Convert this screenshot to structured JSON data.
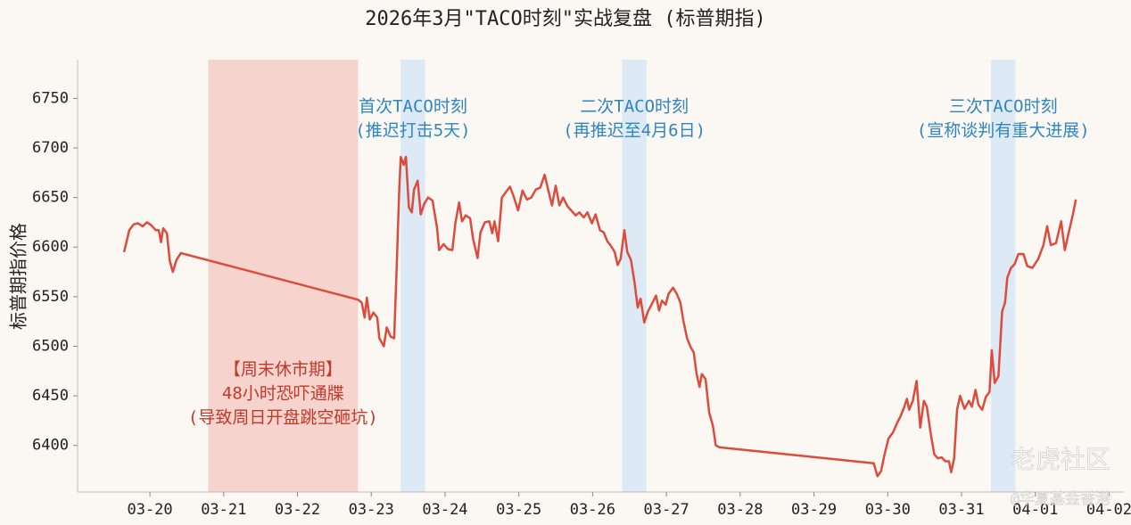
{
  "chart_data": {
    "type": "line",
    "title": "2026年3月\"TACO时刻\"实战复盘 (标普期指)",
    "y_label": "标普期指价格",
    "xlim": [
      19.02,
      33.2
    ],
    "ylim": [
      6353,
      6789
    ],
    "xticks": [
      {
        "value": 20,
        "label": "03-20"
      },
      {
        "value": 21,
        "label": "03-21"
      },
      {
        "value": 22,
        "label": "03-22"
      },
      {
        "value": 23,
        "label": "03-23"
      },
      {
        "value": 24,
        "label": "03-24"
      },
      {
        "value": 25,
        "label": "03-25"
      },
      {
        "value": 26,
        "label": "03-26"
      },
      {
        "value": 27,
        "label": "03-27"
      },
      {
        "value": 28,
        "label": "03-28"
      },
      {
        "value": 29,
        "label": "03-29"
      },
      {
        "value": 30,
        "label": "03-30"
      },
      {
        "value": 31,
        "label": "03-31"
      },
      {
        "value": 32,
        "label": "04-01"
      },
      {
        "value": 33,
        "label": "04-02"
      }
    ],
    "yticks": [
      6400,
      6450,
      6500,
      6550,
      6600,
      6650,
      6700,
      6750
    ],
    "grid": false,
    "spans": [
      {
        "x0": 20.79,
        "x1": 22.82,
        "color": "#f6d3cd",
        "label_color": "#c0392b",
        "label": [
          "【周末休市期】",
          "48小时恐吓通牒",
          "(导致周日开盘跳空砸坑)"
        ]
      },
      {
        "x0": 23.4,
        "x1": 23.73,
        "color": "#dde9f5",
        "label_color": "#2e86c1",
        "label": [
          "首次TACO时刻",
          "(推迟打击5天)"
        ]
      },
      {
        "x0": 26.4,
        "x1": 26.73,
        "color": "#dde9f5",
        "label_color": "#2e86c1",
        "label": [
          "二次TACO时刻",
          "(再推迟至4月6日)"
        ]
      },
      {
        "x0": 31.4,
        "x1": 31.73,
        "color": "#dde9f5",
        "label_color": "#2e86c1",
        "label": [
          "三次TACO时刻",
          "(宣称谈判有重大进展)"
        ]
      }
    ],
    "watermark": [
      "老虎社区",
      "@华夏基金香港"
    ],
    "series": [
      {
        "color": "#dc4b3b",
        "x": [
          19.65,
          19.72,
          19.78,
          19.84,
          19.9,
          19.96,
          20.02,
          20.08,
          20.12,
          20.15,
          20.18,
          20.23,
          20.27,
          20.31,
          20.36,
          20.42,
          22.82,
          22.87,
          22.91,
          22.94,
          22.98,
          23.03,
          23.08,
          23.11,
          23.17,
          23.21,
          23.26,
          23.31,
          23.34,
          23.38,
          23.4,
          23.44,
          23.47,
          23.51,
          23.55,
          23.58,
          23.63,
          23.67,
          23.72,
          23.77,
          23.83,
          23.89,
          23.92,
          23.98,
          24.04,
          24.1,
          24.14,
          24.19,
          24.23,
          24.28,
          24.34,
          24.38,
          24.44,
          24.48,
          24.54,
          24.6,
          24.64,
          24.67,
          24.72,
          24.77,
          24.83,
          24.88,
          24.93,
          24.99,
          25.05,
          25.11,
          25.17,
          25.23,
          25.29,
          25.35,
          25.4,
          25.45,
          25.5,
          25.55,
          25.6,
          25.66,
          25.71,
          25.77,
          25.82,
          25.88,
          25.93,
          25.99,
          26.04,
          26.1,
          26.15,
          26.2,
          26.25,
          26.3,
          26.34,
          26.38,
          26.43,
          26.47,
          26.52,
          26.57,
          26.61,
          26.65,
          26.7,
          26.75,
          26.79,
          26.86,
          26.9,
          26.94,
          26.99,
          27.03,
          27.09,
          27.14,
          27.19,
          27.23,
          27.28,
          27.33,
          27.37,
          27.41,
          27.45,
          27.48,
          27.53,
          27.58,
          27.63,
          27.67,
          27.72,
          29.81,
          29.86,
          29.91,
          29.95,
          30.01,
          30.07,
          30.13,
          30.17,
          30.22,
          30.26,
          30.29,
          30.34,
          30.39,
          30.44,
          30.49,
          30.53,
          30.58,
          30.63,
          30.68,
          30.73,
          30.78,
          30.83,
          30.86,
          30.9,
          30.94,
          30.98,
          31.04,
          31.1,
          31.14,
          31.19,
          31.23,
          31.28,
          31.33,
          31.38,
          31.41,
          31.45,
          31.5,
          31.55,
          31.59,
          31.62,
          31.67,
          31.72,
          31.77,
          31.84,
          31.89,
          31.96,
          32.04,
          32.11,
          32.16,
          32.21,
          32.28,
          32.35,
          32.4,
          32.45,
          32.51,
          32.55
        ],
        "values": [
          6595,
          6617,
          6623,
          6624,
          6621,
          6625,
          6622,
          6617,
          6617,
          6605,
          6619,
          6614,
          6586,
          6575,
          6587,
          6594,
          6547,
          6544,
          6529,
          6549,
          6527,
          6534,
          6529,
          6508,
          6500,
          6519,
          6510,
          6508,
          6571,
          6660,
          6691,
          6683,
          6691,
          6640,
          6635,
          6658,
          6667,
          6633,
          6644,
          6650,
          6647,
          6620,
          6597,
          6603,
          6598,
          6597,
          6624,
          6645,
          6626,
          6632,
          6629,
          6608,
          6589,
          6615,
          6625,
          6626,
          6614,
          6626,
          6606,
          6650,
          6656,
          6661,
          6651,
          6637,
          6657,
          6648,
          6650,
          6658,
          6660,
          6673,
          6657,
          6642,
          6662,
          6642,
          6650,
          6641,
          6637,
          6632,
          6635,
          6630,
          6635,
          6624,
          6633,
          6617,
          6615,
          6606,
          6601,
          6595,
          6582,
          6588,
          6617,
          6595,
          6587,
          6563,
          6539,
          6548,
          6524,
          6535,
          6541,
          6551,
          6536,
          6546,
          6542,
          6553,
          6559,
          6553,
          6544,
          6526,
          6508,
          6499,
          6494,
          6472,
          6459,
          6472,
          6467,
          6433,
          6420,
          6400,
          6398,
          6382,
          6369,
          6374,
          6389,
          6407,
          6413,
          6423,
          6429,
          6438,
          6447,
          6436,
          6445,
          6465,
          6418,
          6445,
          6439,
          6413,
          6391,
          6387,
          6388,
          6384,
          6384,
          6373,
          6387,
          6436,
          6450,
          6437,
          6445,
          6439,
          6456,
          6441,
          6436,
          6449,
          6454,
          6496,
          6463,
          6470,
          6535,
          6544,
          6569,
          6579,
          6583,
          6593,
          6593,
          6581,
          6579,
          6588,
          6602,
          6621,
          6602,
          6604,
          6626,
          6597,
          6614,
          6633,
          6648
        ]
      }
    ]
  }
}
